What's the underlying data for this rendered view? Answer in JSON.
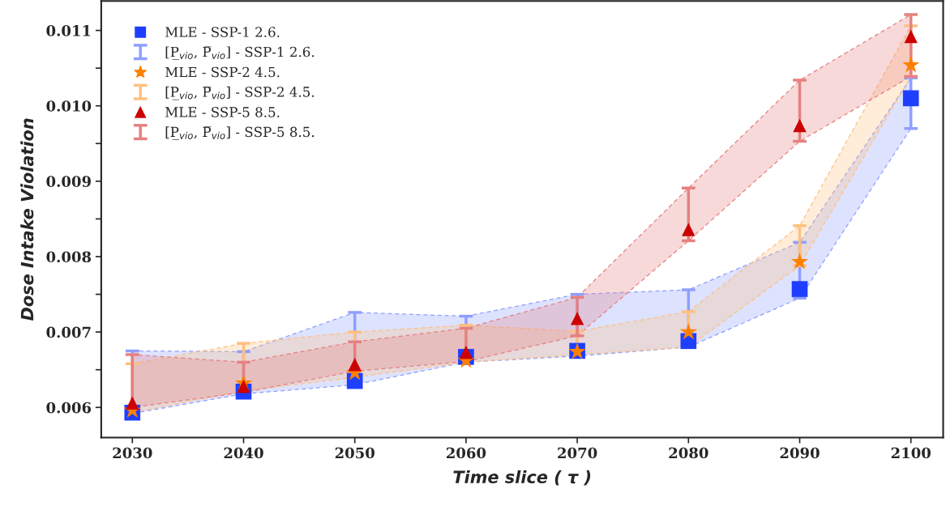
{
  "chart_data": {
    "type": "scatter",
    "xlabel": "Time slice ( τ )",
    "ylabel": "Dose Intake Violation",
    "x": [
      2030,
      2040,
      2050,
      2060,
      2070,
      2080,
      2090,
      2100
    ],
    "xlim": [
      2027.2,
      2102.9
    ],
    "xticks": [
      2030,
      2040,
      2050,
      2060,
      2070,
      2080,
      2090,
      2100
    ],
    "ylim": [
      0.0056,
      0.01139
    ],
    "yticks": [
      {
        "value": 0.006,
        "label": "0.006"
      },
      {
        "value": 0.0065,
        "label": null
      },
      {
        "value": 0.007,
        "label": "0.007"
      },
      {
        "value": 0.0075,
        "label": null
      },
      {
        "value": 0.008,
        "label": "0.008"
      },
      {
        "value": 0.0085,
        "label": null
      },
      {
        "value": 0.009,
        "label": "0.009"
      },
      {
        "value": 0.0095,
        "label": null
      },
      {
        "value": 0.01,
        "label": "0.010"
      },
      {
        "value": 0.0105,
        "label": null
      },
      {
        "value": 0.011,
        "label": "0.011"
      }
    ],
    "legend": "top left",
    "annotations": [
      "[P̲$_{vio}$, P̅$_{vio}$] - SSP-1 2.6.",
      "[P̲$_{vio}$, P̅$_{vio}$] - SSP-2 4.5.",
      "[P̲$_{vio}$, P̅$_{vio}$] - SSP-5 8.5."
    ],
    "series": [
      {
        "name": "MLE - SSP-1 2.6.",
        "color": "#1f3fff",
        "marker": "square",
        "values": [
          0.00593,
          0.00621,
          0.00635,
          0.00667,
          0.00675,
          0.00688,
          0.00757,
          0.0101
        ],
        "errors": [
          [
            0.00592,
            0.00675
          ],
          [
            0.00618,
            0.00674
          ],
          [
            0.00635,
            0.00726
          ],
          [
            0.0066,
            0.00721
          ],
          [
            0.00668,
            0.0075
          ],
          [
            0.0068,
            0.00756
          ],
          [
            0.00745,
            0.00819
          ],
          [
            0.0097,
            0.01037
          ]
        ],
        "lower": [
          0.00592,
          0.00618,
          0.0063,
          0.0066,
          0.00668,
          0.0068,
          0.00745,
          0.0097
        ],
        "upper": [
          0.00675,
          0.00674,
          0.00726,
          0.00721,
          0.0075,
          0.00756,
          0.00819,
          0.01037
        ]
      },
      {
        "name": "MLE - SSP-2 4.5.",
        "color": "#ff8000",
        "marker": "star",
        "values": [
          0.00596,
          0.00632,
          0.00646,
          0.00662,
          0.00674,
          0.007,
          0.00793,
          0.01054
        ],
        "errors": [
          [
            0.00593,
            0.00658
          ],
          [
            0.00622,
            0.00685
          ],
          [
            0.0064,
            0.007
          ],
          [
            0.0066,
            0.00709
          ],
          [
            0.0067,
            0.00701
          ],
          [
            0.0068,
            0.00727
          ],
          [
            0.00788,
            0.00841
          ],
          [
            0.01039,
            0.01106
          ]
        ],
        "lower": [
          0.00593,
          0.00622,
          0.0064,
          0.0066,
          0.0067,
          0.0068,
          0.00788,
          0.01039
        ],
        "upper": [
          0.00658,
          0.00685,
          0.007,
          0.00709,
          0.00701,
          0.00727,
          0.00841,
          0.01106
        ]
      },
      {
        "name": "MLE - SSP-5 8.5.",
        "color": "#cc0000",
        "marker": "triangle",
        "values": [
          0.00606,
          0.00628,
          0.00657,
          0.00673,
          0.00718,
          0.00836,
          0.00974,
          0.01092
        ],
        "errors": [
          [
            0.006,
            0.0067
          ],
          [
            0.0062,
            0.0066
          ],
          [
            0.00648,
            0.00687
          ],
          [
            0.00661,
            0.00705
          ],
          [
            0.00695,
            0.00746
          ],
          [
            0.00821,
            0.00891
          ],
          [
            0.00953,
            0.01034
          ],
          [
            0.01039,
            0.01121
          ]
        ],
        "lower": [
          0.006,
          0.0062,
          0.00648,
          0.00661,
          0.00695,
          0.00821,
          0.00953,
          0.01039
        ],
        "upper": [
          0.0067,
          0.0066,
          0.00687,
          0.00705,
          0.00746,
          0.00891,
          0.01034,
          0.01121
        ]
      }
    ]
  }
}
